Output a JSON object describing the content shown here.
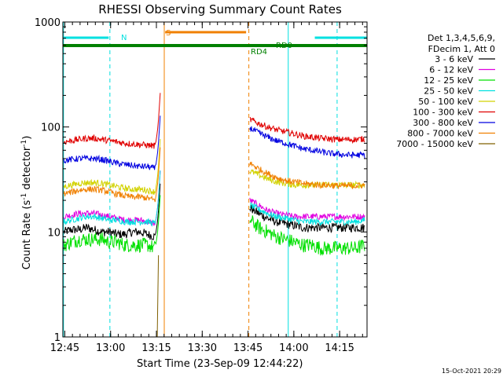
{
  "chart_data": {
    "type": "line",
    "title": "RHESSI Observing Summary Count Rates",
    "xlabel": "Start Time (23-Sep-09 12:44:22)",
    "ylabel_main": "Count Rate (s",
    "ylabel_sup1": "-1",
    "ylabel_mid": " detector",
    "ylabel_sup2": "-1",
    "ylabel_end": ")",
    "y_scale": "log",
    "ylim": [
      1,
      1000
    ],
    "x_start_label": "12:44:22",
    "x_range_minutes": [
      0,
      99.6
    ],
    "x_ticks": [
      {
        "m": 0.63,
        "label": "12:45"
      },
      {
        "m": 15.63,
        "label": "13:00"
      },
      {
        "m": 30.63,
        "label": "13:15"
      },
      {
        "m": 45.63,
        "label": "13:30"
      },
      {
        "m": 60.63,
        "label": "13:45"
      },
      {
        "m": 75.63,
        "label": "14:00"
      },
      {
        "m": 90.63,
        "label": "14:15"
      }
    ],
    "y_ticks": [
      {
        "v": 1,
        "label": "1"
      },
      {
        "v": 10,
        "label": "10"
      },
      {
        "v": 100,
        "label": "100"
      },
      {
        "v": 1000,
        "label": "1000"
      }
    ],
    "legend_header": [
      "Det 1,3,4,5,6,9,",
      "FDecim 1, Att 0"
    ],
    "legend_placement": "right",
    "series": [
      {
        "name": "3 - 6 keV",
        "color": "#000000",
        "pre": [
          10,
          10.5,
          10.5,
          11,
          10.5,
          10,
          10,
          9.5,
          9.5,
          10,
          10,
          9.5,
          9
        ],
        "post": [
          17,
          15,
          13.5,
          12.5,
          12,
          11.5,
          11,
          11,
          11,
          11,
          11,
          11,
          11,
          11
        ]
      },
      {
        "name": "6 - 12 keV",
        "color": "#e000e0",
        "pre": [
          14,
          14.5,
          15,
          15,
          15,
          14.5,
          14,
          13.5,
          13,
          13,
          13,
          12.5,
          12
        ],
        "post": [
          20,
          18,
          16,
          15,
          14.5,
          14,
          14,
          14,
          14,
          14,
          14,
          14,
          14,
          14
        ]
      },
      {
        "name": "12 - 25 keV",
        "color": "#00e000",
        "pre": [
          7.5,
          8,
          8.5,
          8.5,
          8.5,
          8.5,
          8,
          8,
          7.5,
          7.5,
          7.5,
          7.5,
          7
        ],
        "post": [
          13,
          11,
          10,
          9,
          8.5,
          8,
          7.5,
          7.5,
          7,
          7,
          7,
          7,
          7,
          7.5
        ]
      },
      {
        "name": "25 - 50 keV",
        "color": "#00e0e0",
        "pre": [
          12.5,
          13,
          13.5,
          14,
          14,
          13.5,
          13,
          13,
          12.5,
          12.5,
          12.5,
          12.5,
          12
        ],
        "post": [
          18,
          16.5,
          15,
          14,
          13.5,
          13,
          12.5,
          12.5,
          12.5,
          12.5,
          12.5,
          12.5,
          12.5,
          13
        ]
      },
      {
        "name": "50 - 100 keV",
        "color": "#d2d200",
        "pre": [
          27,
          28,
          29,
          29.5,
          29.5,
          29,
          28,
          27,
          26,
          25.5,
          25.5,
          25,
          24
        ],
        "post": [
          38,
          35,
          32,
          30,
          29,
          28,
          28,
          28,
          28,
          28,
          28,
          28,
          28,
          28
        ]
      },
      {
        "name": "100 - 300 keV",
        "color": "#e00000",
        "pre": [
          72,
          74,
          76,
          78,
          78,
          76,
          74,
          72,
          70,
          69,
          68,
          67,
          66
        ],
        "post": [
          118,
          108,
          100,
          94,
          90,
          86,
          82,
          80,
          78,
          77,
          76,
          76,
          76,
          77
        ]
      },
      {
        "name": "300 - 800 keV",
        "color": "#0000e0",
        "pre": [
          48,
          49,
          50,
          50,
          50,
          49,
          47,
          45,
          44,
          43,
          42,
          42,
          40
        ],
        "post": [
          98,
          88,
          80,
          74,
          70,
          66,
          62,
          60,
          58,
          56,
          55,
          54,
          54,
          54
        ]
      },
      {
        "name": "800 - 7000 keV",
        "color": "#f08000",
        "pre": [
          23,
          24,
          25,
          25.5,
          25.5,
          25,
          24,
          23,
          22,
          21.5,
          21.5,
          21,
          20
        ],
        "post": [
          45,
          40,
          36,
          33,
          31,
          30,
          29,
          28.5,
          28,
          28,
          27.5,
          27.5,
          27.5,
          28
        ]
      },
      {
        "name": "7000 - 15000 keV",
        "color": "#806000",
        "pre": [],
        "post": []
      }
    ],
    "flag_bars": [
      {
        "label": "N",
        "color": "#00e0e0",
        "segments": [
          [
            0,
            15
          ],
          [
            82.5,
            99.6
          ]
        ]
      },
      {
        "label": "S",
        "color": "#f08000",
        "segments": [
          [
            33.5,
            60
          ]
        ]
      },
      {
        "label": "RD0",
        "color": "#008000",
        "segments": [
          [
            0,
            99.6
          ]
        ]
      }
    ],
    "annotations": [
      "N",
      "S",
      "RD0",
      "RD4"
    ],
    "vlines": [
      {
        "m": 0.2,
        "color": "#00e0e0",
        "dash": false
      },
      {
        "m": 15.4,
        "color": "#00e0e0",
        "dash": true
      },
      {
        "m": 33.2,
        "color": "#f08000",
        "dash": false
      },
      {
        "m": 60.9,
        "color": "#f08000",
        "dash": true
      },
      {
        "m": 73.8,
        "color": "#00e0e0",
        "dash": false
      },
      {
        "m": 89.8,
        "color": "#00e0e0",
        "dash": true
      }
    ]
  },
  "footer_date": "15-Oct-2021 20:29"
}
